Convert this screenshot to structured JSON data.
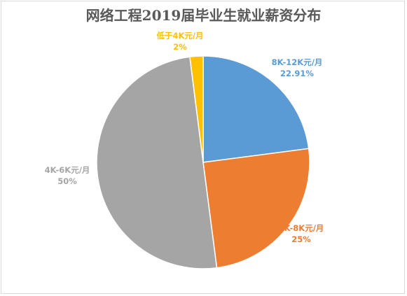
{
  "chart_data": {
    "type": "pie",
    "title": "网络工程2019届毕业生就业薪资分布",
    "slices": [
      {
        "name": "8K-12K元/月",
        "value": 22.91,
        "label": "22.91%",
        "color": "#5B9BD5"
      },
      {
        "name": "6K-8K元/月",
        "value": 25,
        "label": "25%",
        "color": "#ED7D31"
      },
      {
        "name": "4K-6K元/月",
        "value": 50,
        "label": "50%",
        "color": "#A5A5A5"
      },
      {
        "name": "低于4K元/月",
        "value": 2,
        "label": "2%",
        "color": "#FFC000"
      }
    ],
    "legend": "none",
    "data_labels": "outside-end"
  }
}
